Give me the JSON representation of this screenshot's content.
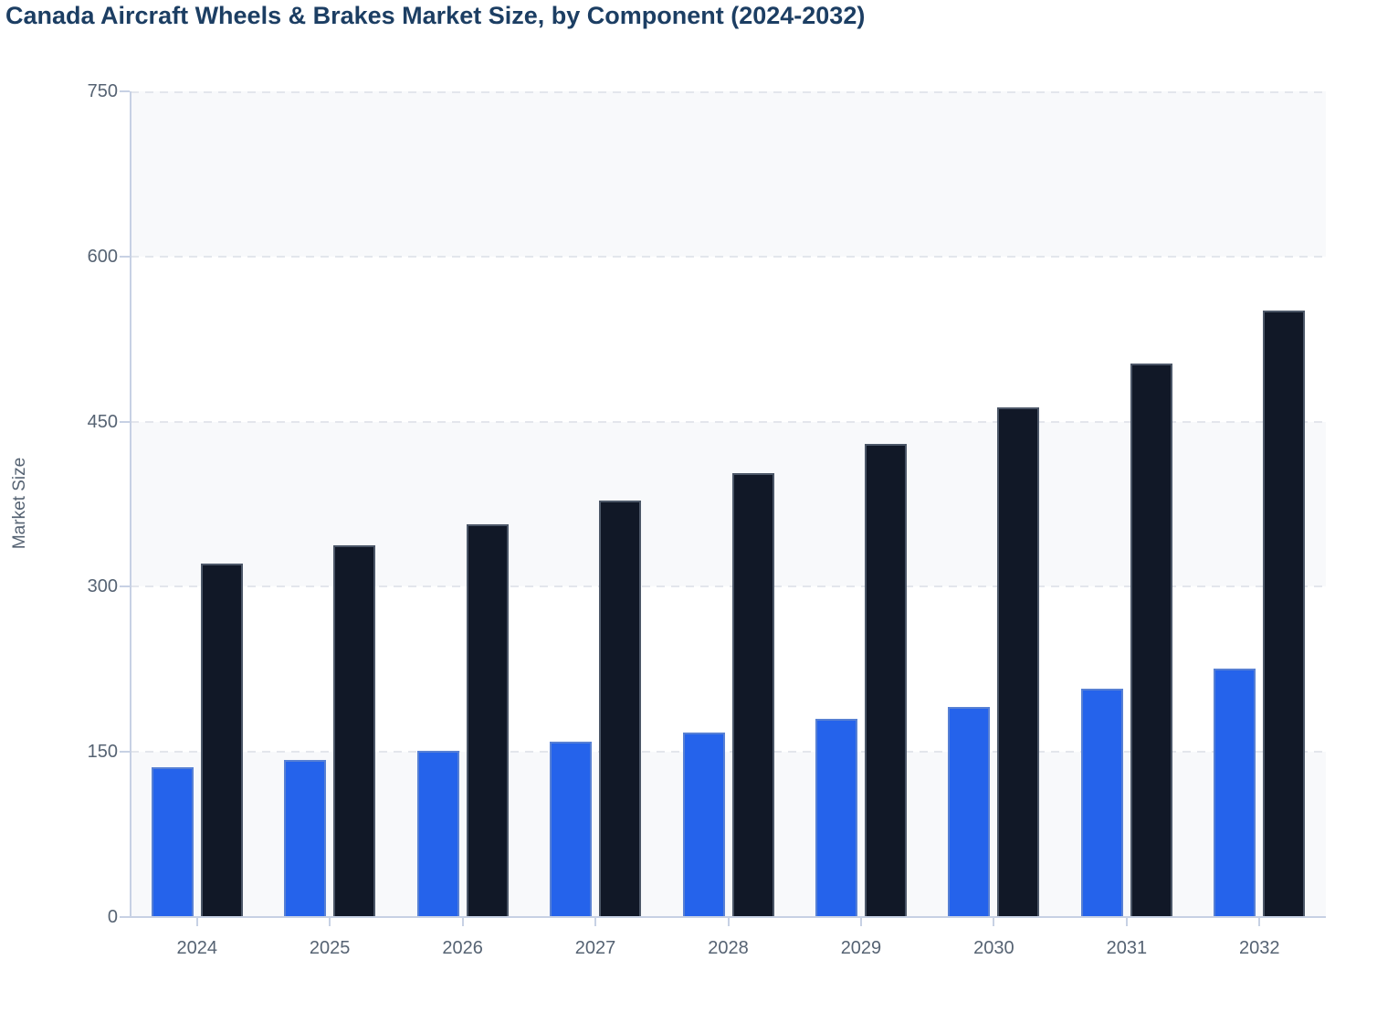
{
  "title": "Canada Aircraft Wheels & Brakes Market Size, by Component (2024-2032)",
  "y_axis": {
    "title": "Market Size",
    "tick_labels": [
      "0",
      "150",
      "300",
      "450",
      "600",
      "750"
    ]
  },
  "x_axis": {
    "tick_labels": [
      "2024",
      "2025",
      "2026",
      "2027",
      "2028",
      "2029",
      "2030",
      "2031",
      "2032"
    ]
  },
  "colors": {
    "title_text": "#1c3e63",
    "axis_text": "#566373",
    "axis_line": "#c7d1e4",
    "gridline_dash": "#e3e6ec",
    "band_fill": "#f8f9fb",
    "series_blue": "#2563eb",
    "series_dark": "#111827",
    "background": "#ffffff"
  },
  "chart_data": {
    "type": "bar",
    "title": "Canada Aircraft Wheels & Brakes Market Size, by Component (2024-2032)",
    "categories": [
      "2024",
      "2025",
      "2026",
      "2027",
      "2028",
      "2029",
      "2030",
      "2031",
      "2032"
    ],
    "series": [
      {
        "name": "component-series-blue",
        "color": "#2563eb",
        "values": [
          136,
          143,
          151,
          159,
          168,
          180,
          191,
          207,
          226
        ]
      },
      {
        "name": "component-series-dark-navy",
        "color": "#111827",
        "values": [
          321,
          338,
          357,
          378,
          403,
          430,
          463,
          503,
          551
        ]
      }
    ],
    "xlabel": "",
    "ylabel": "Market Size",
    "ylim": [
      0,
      750
    ],
    "yticks": [
      0,
      150,
      300,
      450,
      600,
      750
    ],
    "grid": "horizontal-dashed",
    "legend": "none",
    "plot_background": "alternating horizontal bands (light gray / white)"
  }
}
